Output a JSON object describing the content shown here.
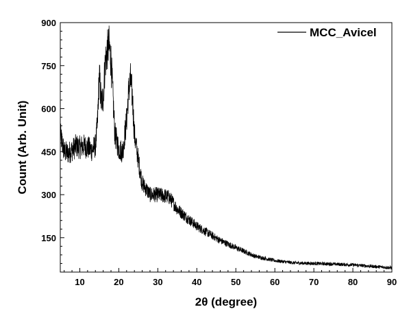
{
  "chart_data": {
    "type": "line",
    "xlabel": "2θ (degree)",
    "ylabel": "Count (Arb. Unit)",
    "xlim": [
      5,
      90
    ],
    "ylim": [
      30,
      900
    ],
    "x_ticks": [
      10,
      20,
      30,
      40,
      50,
      60,
      70,
      80,
      90
    ],
    "y_ticks": [
      150,
      300,
      450,
      600,
      750,
      900
    ],
    "grid": false,
    "legend_position": "top-right",
    "series": [
      {
        "name": "MCC_Avicel",
        "color": "#000000",
        "x": [
          5,
          6,
          7,
          8,
          9,
          10,
          11,
          12,
          13,
          14,
          14.5,
          15,
          15.5,
          16,
          16.5,
          17,
          17.5,
          18,
          18.5,
          19,
          20,
          21,
          22,
          22.5,
          23,
          23.5,
          24,
          25,
          26,
          27,
          28,
          30,
          32,
          33,
          35,
          37,
          40,
          43,
          46,
          50,
          55,
          60,
          65,
          70,
          75,
          80,
          85,
          90
        ],
        "y": [
          510,
          450,
          445,
          455,
          470,
          465,
          470,
          465,
          455,
          470,
          540,
          720,
          620,
          640,
          760,
          800,
          820,
          770,
          640,
          510,
          460,
          450,
          560,
          660,
          700,
          640,
          510,
          420,
          340,
          320,
          300,
          300,
          295,
          290,
          250,
          225,
          190,
          165,
          140,
          115,
          85,
          70,
          62,
          60,
          58,
          55,
          50,
          45
        ]
      }
    ]
  }
}
